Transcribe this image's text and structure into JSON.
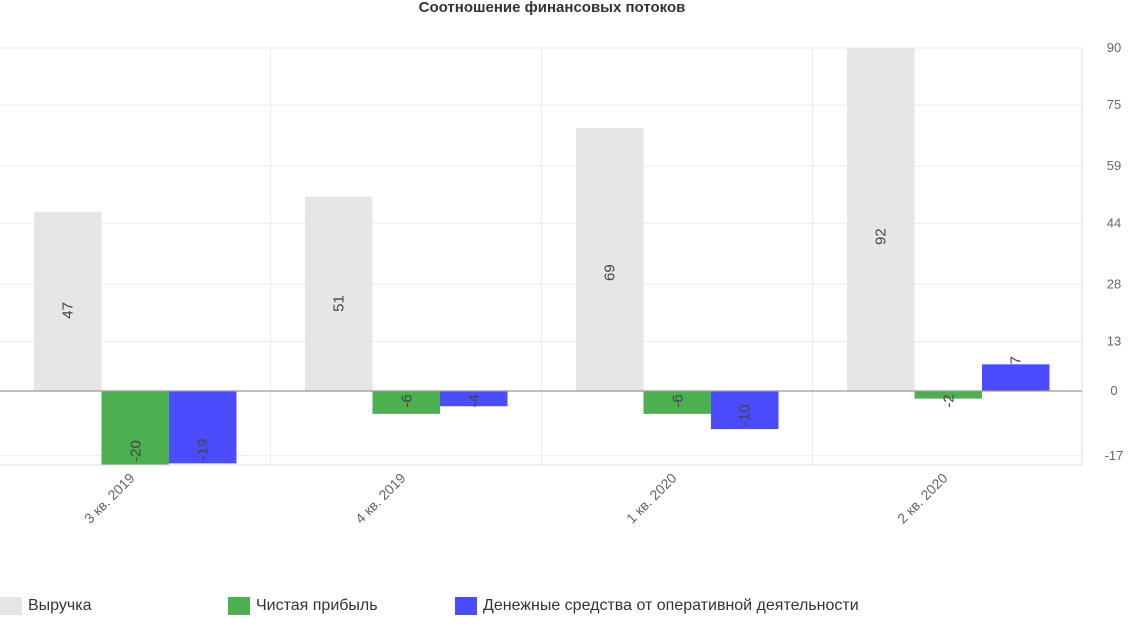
{
  "chart_data": {
    "type": "bar",
    "title": "Соотношение финансовых потоков",
    "categories": [
      "3 кв. 2019",
      "4 кв. 2019",
      "1 кв. 2020",
      "2 кв. 2020"
    ],
    "series": [
      {
        "name": "Выручка",
        "values": [
          47,
          51,
          69,
          92
        ],
        "color": "#e6e6e6"
      },
      {
        "name": "Чистая прибыль",
        "values": [
          -20,
          -6,
          -6,
          -2
        ],
        "color": "#4caf50"
      },
      {
        "name": "Денежные средства от оперативной деятельности",
        "values": [
          -19,
          -4,
          -10,
          7
        ],
        "color": "#4c4cff"
      }
    ],
    "y_ticks": [
      "90",
      "75",
      "59",
      "44",
      "28",
      "13",
      "0",
      "-17"
    ],
    "y_axis_position": "right",
    "ylim": [
      -20,
      90
    ],
    "grid": true,
    "legend_position": "bottom"
  }
}
